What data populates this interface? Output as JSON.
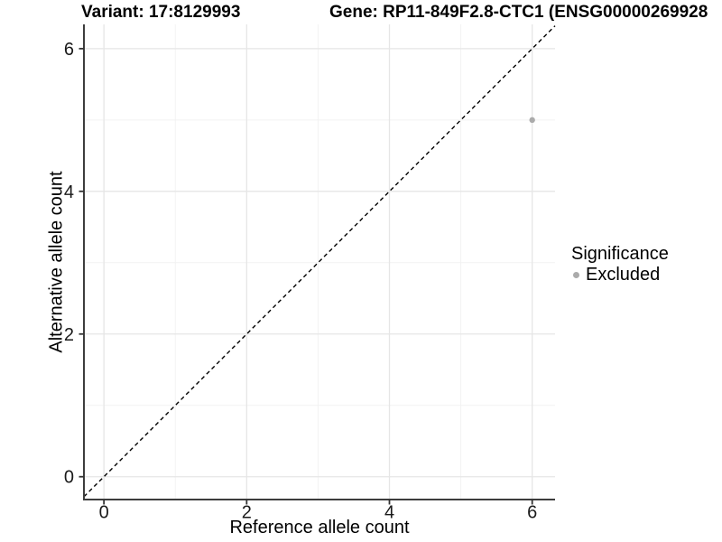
{
  "titles": {
    "variant": "Variant: 17:8129993",
    "gene": "Gene: RP11-849F2.8-CTC1 (ENSG00000269928"
  },
  "chart_data": {
    "type": "scatter",
    "xlabel": "Reference allele count",
    "ylabel": "Alternative allele count",
    "xlim": [
      -0.28,
      6.32
    ],
    "ylim": [
      -0.32,
      6.34
    ],
    "x_ticks": [
      0,
      2,
      4,
      6
    ],
    "y_ticks": [
      0,
      2,
      4,
      6
    ],
    "x_minor_ticks": [
      1,
      3,
      5
    ],
    "y_minor_ticks": [
      1,
      3,
      5
    ],
    "grid": "major and minor gridlines on, white background",
    "series": [
      {
        "name": "Excluded",
        "color": "#ababab",
        "points": [
          {
            "x": 6,
            "y": 5
          }
        ]
      }
    ],
    "reference_line": {
      "type": "identity",
      "slope": 1,
      "intercept": 0,
      "style": "dashed",
      "color": "#000000"
    },
    "legend": {
      "title": "Significance",
      "position": "right",
      "entries": [
        {
          "label": "Excluded",
          "color": "#ababab"
        }
      ]
    },
    "style": {
      "grid_major_color": "#e6e6e6",
      "grid_minor_color": "#f2f2f2",
      "axis_line_color": "#3d3d3d",
      "tick_color": "#333333",
      "tick_label_color": "#1a1a1a",
      "point_radius": 3.2
    }
  }
}
